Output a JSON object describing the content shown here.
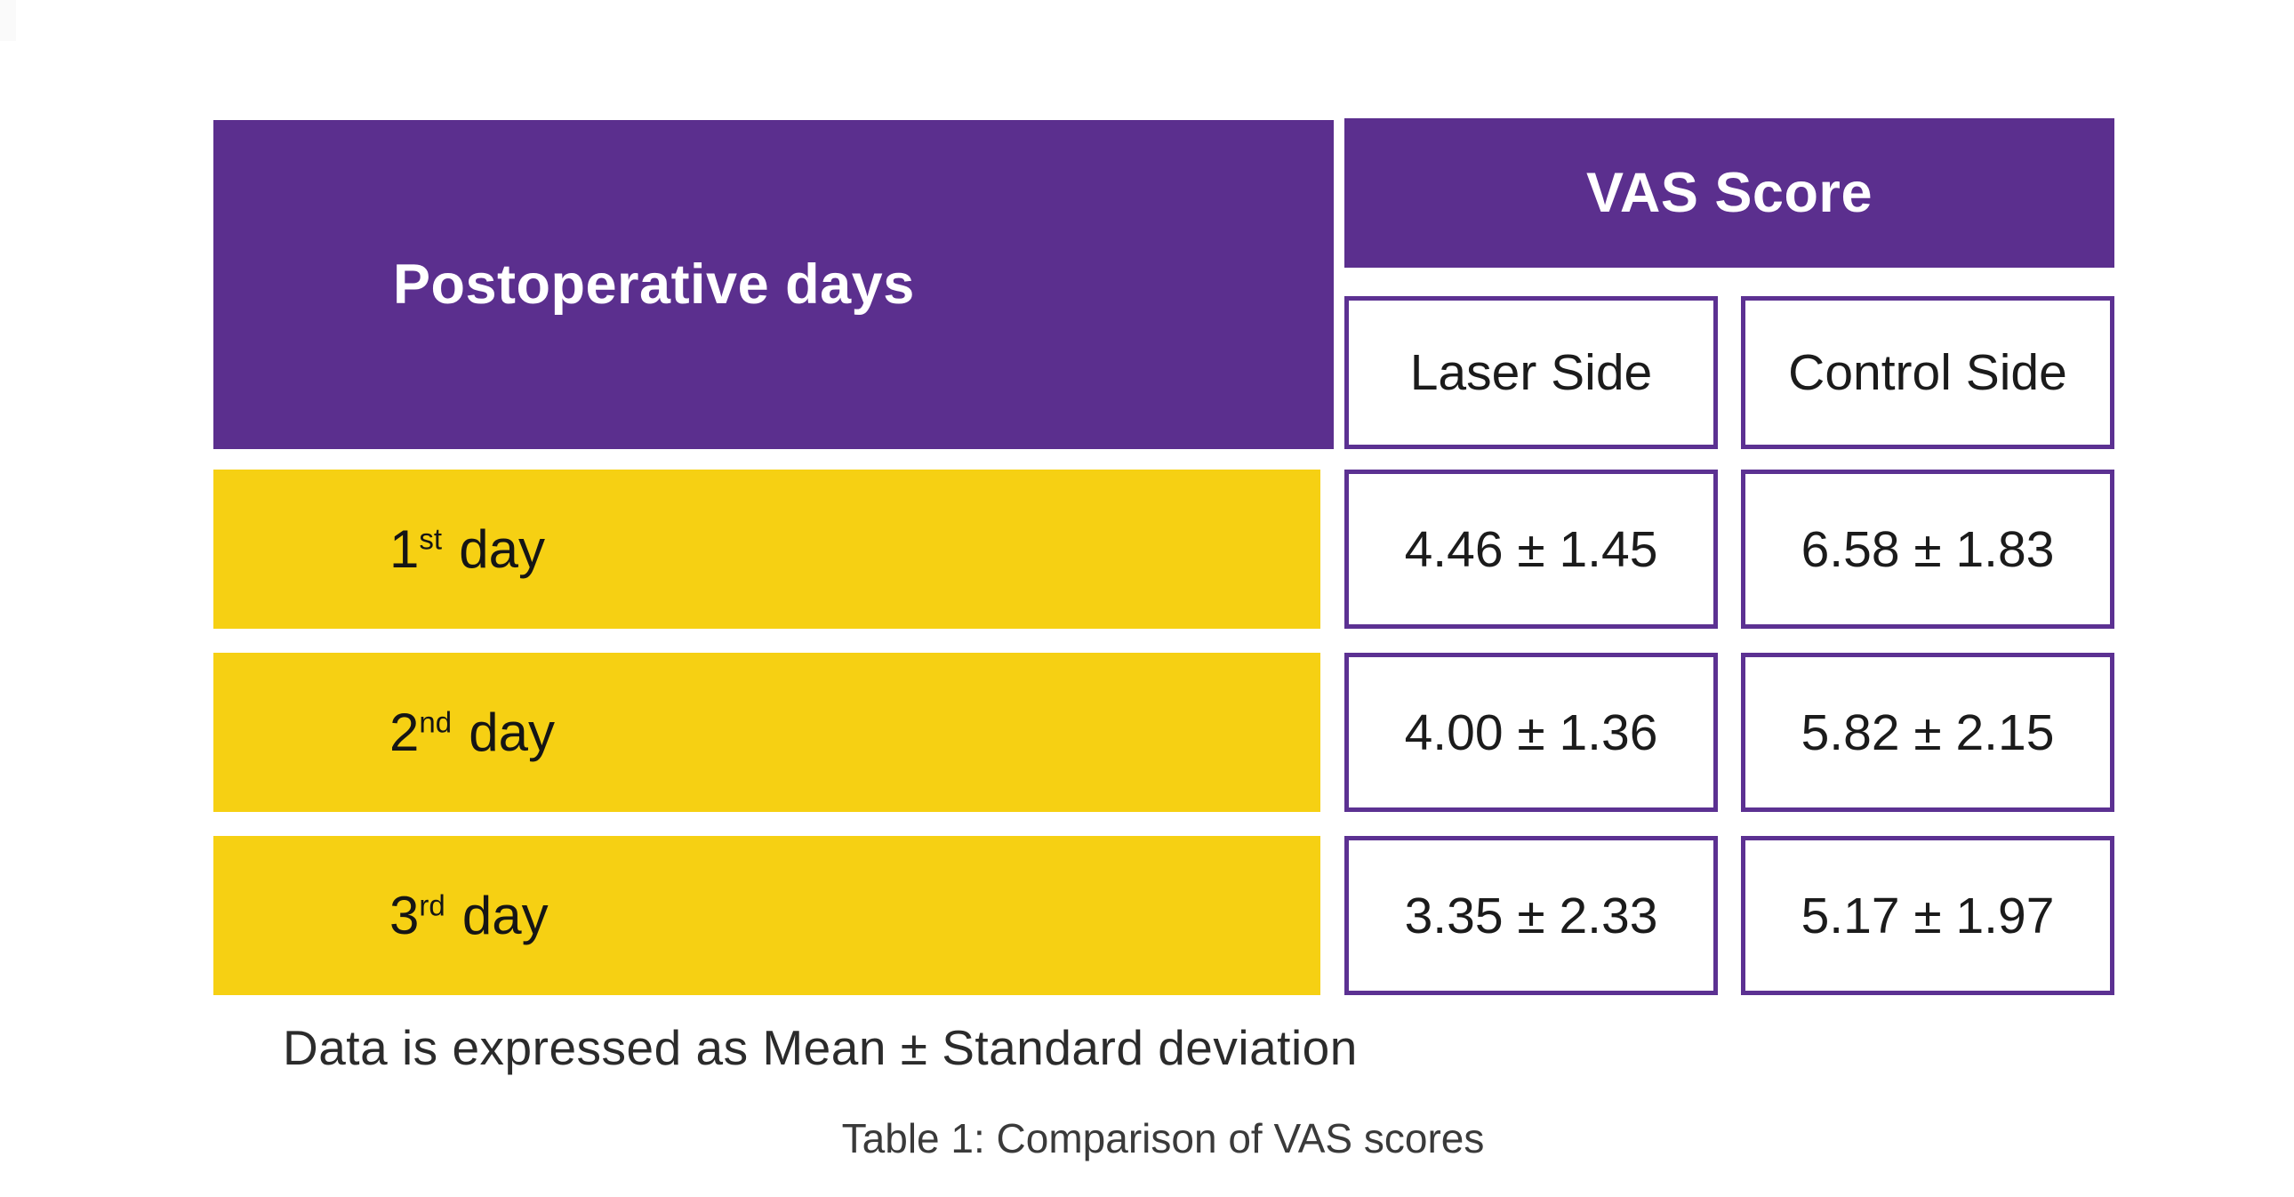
{
  "colors": {
    "header_purple": "#5B2F8E",
    "box_border_purple": "#5C3192",
    "row_yellow": "#F6D013",
    "header_text": "#FFFFFF",
    "cell_text": "#1B1B1B",
    "note_text": "#2B2B2B",
    "caption_text": "#3A3A3A"
  },
  "table": {
    "row_header_label": "Postoperative days",
    "group_header": "VAS Score",
    "col_laser": "Laser Side",
    "col_control": "Control Side",
    "rows": [
      {
        "day_number": "1",
        "ordinal": "st",
        "suffix": "day",
        "laser": "4.46 ± 1.45",
        "control": "6.58 ± 1.83"
      },
      {
        "day_number": "2",
        "ordinal": "nd",
        "suffix": "day",
        "laser": "4.00 ± 1.36",
        "control": "5.82 ± 2.15"
      },
      {
        "day_number": "3",
        "ordinal": "rd",
        "suffix": "day",
        "laser": "3.35 ± 2.33",
        "control": "5.17 ± 1.97"
      }
    ],
    "note": "Data is expressed as Mean ± Standard deviation",
    "caption": "Table 1: Comparison of VAS scores"
  },
  "chart_data": {
    "type": "table",
    "title": "Table 1: Comparison of VAS scores",
    "row_header": "Postoperative days",
    "column_group": "VAS Score",
    "columns": [
      "Laser Side",
      "Control Side"
    ],
    "rows": [
      "1st day",
      "2nd day",
      "3rd day"
    ],
    "values": [
      [
        "4.46 ± 1.45",
        "6.58 ± 1.83"
      ],
      [
        "4.00 ± 1.36",
        "5.82 ± 2.15"
      ],
      [
        "3.35 ± 2.33",
        "5.17 ± 1.97"
      ]
    ],
    "laser_mean": [
      4.46,
      4.0,
      3.35
    ],
    "laser_sd": [
      1.45,
      1.36,
      2.33
    ],
    "control_mean": [
      6.58,
      5.82,
      5.17
    ],
    "control_sd": [
      1.83,
      2.15,
      1.97
    ],
    "note": "Data is expressed as Mean ± Standard deviation"
  }
}
